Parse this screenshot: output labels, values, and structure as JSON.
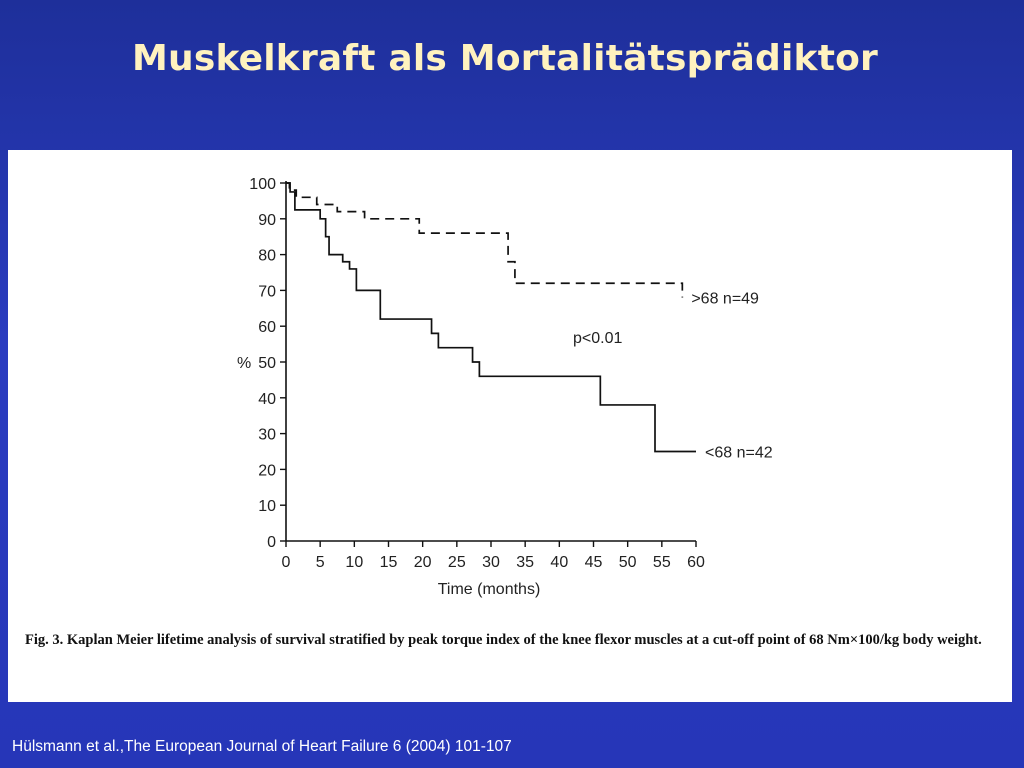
{
  "slide": {
    "title": "Muskelkraft als Mortalitätsprädiktor",
    "caption": "Fig. 3. Kaplan Meier lifetime analysis of survival stratified by peak torque index of the knee flexor muscles at a cut-off point of 68 Nm×100/kg body weight.",
    "citation": "Hülsmann et al.,The European Journal of Heart Failure 6 (2004) 101-107"
  },
  "chart_data": {
    "type": "line",
    "xlabel": "Time (months)",
    "ylabel": "%",
    "xlim": [
      0,
      60
    ],
    "ylim": [
      0,
      100
    ],
    "xticks": [
      0,
      5,
      10,
      15,
      20,
      25,
      30,
      35,
      40,
      45,
      50,
      55,
      60
    ],
    "yticks": [
      0,
      10,
      20,
      30,
      40,
      50,
      60,
      70,
      80,
      90,
      100
    ],
    "grid": false,
    "step": true,
    "series": [
      {
        "name": ">68  n=49",
        "style": "dashed",
        "x": [
          0,
          0.5,
          1.5,
          4.5,
          7.5,
          11.5,
          19.5,
          32.5,
          33.5,
          58
        ],
        "y": [
          100,
          98,
          96,
          94,
          92,
          90,
          86,
          78,
          72,
          68
        ]
      },
      {
        "name": "<68  n=42",
        "style": "solid",
        "x": [
          0,
          0.6,
          1.3,
          5,
          5.8,
          6.3,
          8.3,
          9.3,
          10.3,
          13.8,
          21.3,
          22.3,
          27.3,
          28.3,
          46,
          54,
          60
        ],
        "y": [
          100,
          97.5,
          92.5,
          90,
          85,
          80,
          78,
          76,
          70,
          62,
          58,
          54,
          50,
          46,
          38,
          25,
          25
        ]
      }
    ],
    "annotations": [
      {
        "text": "p<0.01",
        "x": 42,
        "y": 57
      }
    ],
    "colors": {
      "line": "#111111"
    }
  }
}
